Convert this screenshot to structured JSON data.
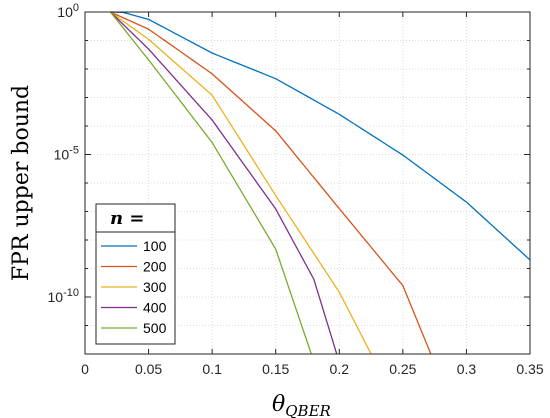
{
  "chart_data": {
    "type": "line",
    "title": "",
    "xlabel": "θ_QBER",
    "xlabel_main": "θ",
    "xlabel_sub": "QBER",
    "ylabel": "FPR upper bound",
    "xlim": [
      0,
      0.35
    ],
    "ylim": [
      1e-12,
      1
    ],
    "yscale": "log",
    "grid": true,
    "x_ticks": [
      0,
      0.05,
      0.1,
      0.15,
      0.2,
      0.25,
      0.3,
      0.35
    ],
    "x_tick_labels": [
      "0",
      "0.05",
      "0.1",
      "0.15",
      "0.2",
      "0.25",
      "0.3",
      "0.35"
    ],
    "y_ticks": [
      {
        "base": "10",
        "exp": "0",
        "value": 1
      },
      {
        "base": "10",
        "exp": "-5",
        "value": 1e-05
      },
      {
        "base": "10",
        "exp": "-10",
        "value": 1e-10
      }
    ],
    "legend": {
      "title": "n =",
      "placement": "bottom-left",
      "entries": [
        "100",
        "200",
        "300",
        "400",
        "500"
      ]
    },
    "series": [
      {
        "name": "100",
        "color": "#0072BD",
        "x": [
          0.02,
          0.03,
          0.05,
          0.1,
          0.15,
          0.2,
          0.25,
          0.3,
          0.35
        ],
        "y": [
          1,
          0.97,
          0.55,
          0.0363,
          0.00457,
          0.000257,
          9.55e-06,
          2.14e-07,
          2e-09
        ]
      },
      {
        "name": "200",
        "color": "#D95319",
        "x": [
          0.02,
          0.05,
          0.1,
          0.15,
          0.2,
          0.25,
          0.272
        ],
        "y": [
          1,
          0.25,
          0.00676,
          6.76e-05,
          1.26e-07,
          2.51e-10,
          1e-12
        ]
      },
      {
        "name": "300",
        "color": "#EDB120",
        "x": [
          0.02,
          0.05,
          0.1,
          0.15,
          0.2,
          0.225
        ],
        "y": [
          1,
          0.11,
          0.0012,
          3.63e-07,
          1.48e-10,
          1e-12
        ]
      },
      {
        "name": "400",
        "color": "#7E2F8E",
        "x": [
          0.02,
          0.05,
          0.1,
          0.15,
          0.18,
          0.198
        ],
        "y": [
          1,
          0.05,
          0.000162,
          1.23e-07,
          4.17e-10,
          1e-12
        ]
      },
      {
        "name": "500",
        "color": "#77AC30",
        "x": [
          0.02,
          0.05,
          0.1,
          0.15,
          0.178
        ],
        "y": [
          1,
          0.021,
          2.63e-05,
          4.79e-09,
          1e-12
        ]
      }
    ]
  }
}
